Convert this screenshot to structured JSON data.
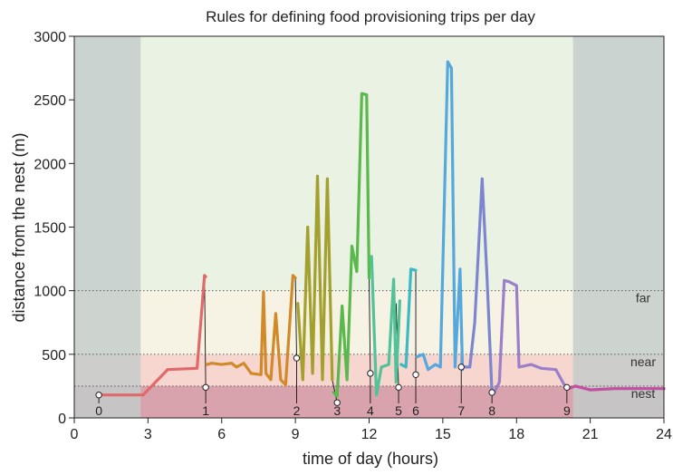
{
  "chart_data": {
    "type": "line",
    "title": "Rules for defining food provisioning trips per day",
    "xlabel": "time of day (hours)",
    "ylabel": "distance from the nest (m)",
    "xlim": [
      0,
      24
    ],
    "ylim": [
      0,
      3000
    ],
    "xticks": [
      0,
      3,
      6,
      9,
      12,
      15,
      18,
      21,
      24
    ],
    "yticks": [
      0,
      500,
      1000,
      1500,
      2000,
      2500,
      3000
    ],
    "night_shading": [
      {
        "from": 0,
        "to": 2.7
      },
      {
        "from": 20.3,
        "to": 24
      }
    ],
    "zones": [
      {
        "name": "nest",
        "from": 0,
        "to": 250,
        "color": "#d9a3ad"
      },
      {
        "name": "near",
        "from": 250,
        "to": 500,
        "color": "#f6d6cf"
      },
      {
        "name": "far",
        "from": 500,
        "to": 1000,
        "color": "#f6f3e4"
      },
      {
        "name": "",
        "from": 1000,
        "to": 3000,
        "color": "#eaf2e3"
      }
    ],
    "night_color": "#c3cccb",
    "threshold_lines": [
      250,
      500,
      1000
    ],
    "series": [
      {
        "color": "#e06a6a",
        "x": [
          1.0,
          2.8,
          3.8,
          5.0,
          5.3,
          5.35
        ],
        "y": [
          180,
          180,
          380,
          390,
          1120,
          1110
        ]
      },
      {
        "color": "#d18a2a",
        "x": [
          5.4,
          5.6,
          6.0,
          6.4,
          6.6,
          6.9,
          7.2,
          7.6,
          7.7,
          7.8,
          8.0,
          8.2,
          8.4,
          8.6,
          8.9,
          9.0
        ],
        "y": [
          420,
          430,
          420,
          430,
          400,
          430,
          350,
          340,
          990,
          350,
          300,
          820,
          300,
          260,
          1120,
          1100
        ]
      },
      {
        "color": "#a3a02e",
        "x": [
          9.1,
          9.3,
          9.5,
          9.7,
          9.9,
          10.1,
          10.3,
          10.5
        ],
        "y": [
          900,
          300,
          1500,
          350,
          1900,
          300,
          1880,
          300
        ]
      },
      {
        "color": "#5ab84d",
        "x": [
          10.55,
          10.7,
          10.9,
          11.1,
          11.3,
          11.5,
          11.7,
          11.9,
          12.0
        ],
        "y": [
          200,
          170,
          880,
          300,
          1350,
          1150,
          2550,
          2540,
          1100
        ]
      },
      {
        "color": "#52c298",
        "x": [
          12.1,
          12.3,
          12.5,
          12.8,
          13.0,
          13.1,
          13.25
        ],
        "y": [
          1270,
          180,
          400,
          420,
          1090,
          280,
          920
        ]
      },
      {
        "color": "#3eb8c2",
        "x": [
          13.3,
          13.5,
          13.7,
          13.9
        ],
        "y": [
          420,
          400,
          1170,
          1160
        ]
      },
      {
        "color": "#56a8dc",
        "x": [
          13.95,
          14.2,
          14.4,
          14.7,
          14.9,
          15.2,
          15.35,
          15.5,
          15.7,
          15.8
        ],
        "y": [
          480,
          500,
          380,
          420,
          400,
          2800,
          2750,
          400,
          1170,
          380
        ]
      },
      {
        "color": "#7c86cf",
        "x": [
          15.9,
          16.1,
          16.3,
          16.6,
          16.8,
          17.0
        ],
        "y": [
          400,
          400,
          750,
          1880,
          1100,
          200
        ]
      },
      {
        "color": "#9b7fc9",
        "x": [
          17.1,
          17.3,
          17.5,
          17.7,
          18.0,
          18.1,
          18.6,
          19.0,
          19.6,
          20.0
        ],
        "y": [
          200,
          280,
          1080,
          1070,
          1040,
          400,
          420,
          390,
          380,
          240
        ]
      },
      {
        "color": "#c24fa1",
        "x": [
          20.1,
          20.4,
          21.0,
          22.0,
          23.0,
          24.0
        ],
        "y": [
          230,
          250,
          220,
          230,
          230,
          230
        ]
      }
    ],
    "trip_markers": [
      {
        "label": "0",
        "x": 1.0,
        "y": 180
      },
      {
        "label": "1",
        "x": 5.35,
        "y": 240
      },
      {
        "label": "2",
        "x": 9.05,
        "y": 470
      },
      {
        "label": "3",
        "x": 10.7,
        "y": 120
      },
      {
        "label": "4",
        "x": 12.05,
        "y": 350
      },
      {
        "label": "5",
        "x": 13.2,
        "y": 240
      },
      {
        "label": "6",
        "x": 13.9,
        "y": 340
      },
      {
        "label": "7",
        "x": 15.75,
        "y": 400
      },
      {
        "label": "8",
        "x": 17.0,
        "y": 200
      },
      {
        "label": "9",
        "x": 20.05,
        "y": 240
      }
    ],
    "connector_lines": [
      {
        "x1": 5.3,
        "y1": 1110,
        "x2": 5.35,
        "y2": 240
      },
      {
        "x1": 9.0,
        "y1": 1100,
        "x2": 9.05,
        "y2": 470
      },
      {
        "x1": 10.5,
        "y1": 300,
        "x2": 10.7,
        "y2": 120
      },
      {
        "x1": 12.0,
        "y1": 1100,
        "x2": 12.05,
        "y2": 350
      },
      {
        "x1": 13.1,
        "y1": 900,
        "x2": 13.2,
        "y2": 240
      },
      {
        "x1": 13.9,
        "y1": 1160,
        "x2": 13.9,
        "y2": 340
      },
      {
        "x1": 15.7,
        "y1": 1160,
        "x2": 15.75,
        "y2": 400
      },
      {
        "x1": 16.8,
        "y1": 1100,
        "x2": 17.0,
        "y2": 200
      },
      {
        "x1": 19.6,
        "y1": 380,
        "x2": 20.05,
        "y2": 240
      }
    ],
    "zone_labels": [
      {
        "text": "far",
        "y": 1000
      },
      {
        "text": "near",
        "y": 500
      },
      {
        "text": "nest",
        "y": 250
      }
    ]
  }
}
